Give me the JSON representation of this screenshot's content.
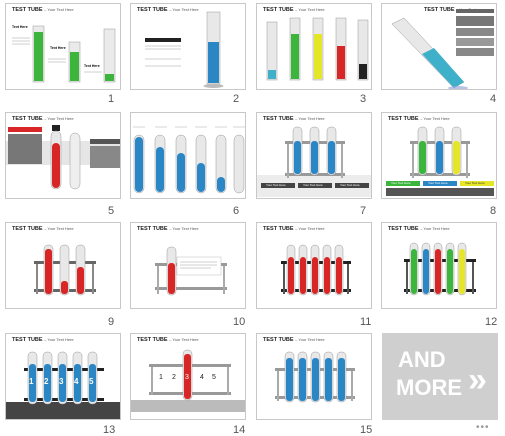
{
  "slides": [
    {
      "number": "1",
      "title": "TEST TUBE",
      "subtitle": "– Your Text Here",
      "labels": [
        "Text Here",
        "Text Here",
        "Text Here"
      ]
    },
    {
      "number": "2",
      "title": "TEST TUBE",
      "subtitle": "– Your Text Here"
    },
    {
      "number": "3",
      "title": "TEST TUBE",
      "subtitle": "– Your Text Here"
    },
    {
      "number": "4",
      "title": "TEST TUBE",
      "subtitle": "– Your Text"
    },
    {
      "number": "5",
      "title": "TEST TUBE",
      "subtitle": "– Your Text Here"
    },
    {
      "number": "6",
      "title": "TEST TUBE",
      "subtitle": "– Your Text Here"
    },
    {
      "number": "7",
      "title": "TEST TUBE",
      "subtitle": "– Your Text Here",
      "labels": [
        "Your Text Here",
        "Your Text Here",
        "Your Text Here"
      ]
    },
    {
      "number": "8",
      "title": "TEST TUBE",
      "subtitle": "– Your Text Here",
      "labels": [
        "Your Text Here",
        "Your Text Here",
        "Your Text Here"
      ]
    },
    {
      "number": "9",
      "title": "TEST TUBE",
      "subtitle": "– Your Text Here"
    },
    {
      "number": "10",
      "title": "TEST TUBE",
      "subtitle": "– Your Text Here"
    },
    {
      "number": "11",
      "title": "TEST TUBE",
      "subtitle": "– Your Text Here"
    },
    {
      "number": "12",
      "title": "TEST TUBE",
      "subtitle": "– Your Text Here"
    },
    {
      "number": "13",
      "title": "TEST TUBE",
      "subtitle": "– Your Text Here",
      "labels": [
        "1",
        "2",
        "3",
        "4",
        "5"
      ]
    },
    {
      "number": "14",
      "title": "TEST TUBE",
      "subtitle": "– Your Text Here",
      "labels": [
        "1",
        "2",
        "3",
        "4",
        "5"
      ]
    },
    {
      "number": "15",
      "title": "TEST TUBE",
      "subtitle": "– Your Text Here"
    }
  ],
  "more": {
    "line1": "AND",
    "line2": "MORE",
    "chevron": "»",
    "dots": "•••"
  },
  "colors": {
    "green": "#3cb53c",
    "blue": "#2a86c4",
    "red": "#d82626",
    "yellow": "#e6e629",
    "black": "#222222",
    "teal": "#3fb0c9"
  }
}
